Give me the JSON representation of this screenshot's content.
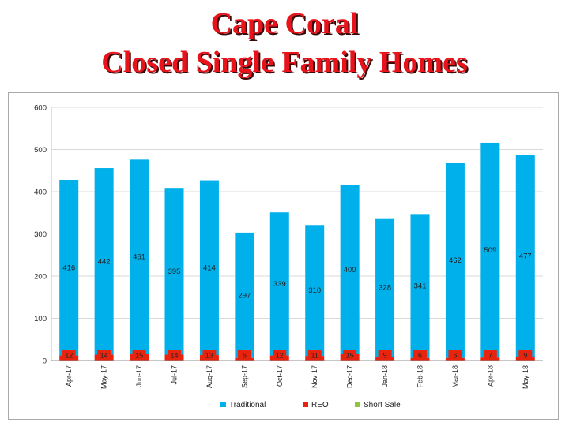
{
  "title": {
    "line1": "Cape Coral",
    "line2": "Closed Single Family Homes"
  },
  "colors": {
    "title": "#e8131b",
    "traditional": "#00b0ea",
    "reo": "#e8240f",
    "short_sale": "#8dc63f",
    "grid": "#d9d9d9"
  },
  "chart_data": {
    "type": "bar",
    "stacked": true,
    "categories": [
      "Apr-17",
      "May-17",
      "Jun-17",
      "Jul-17",
      "Aug-17",
      "Sep-17",
      "Oct-17",
      "Nov-17",
      "Dec-17",
      "Jan-18",
      "Feb-18",
      "Mar-18",
      "Apr-18",
      "May-18"
    ],
    "series": [
      {
        "name": "Traditional",
        "values": [
          416,
          442,
          461,
          395,
          414,
          297,
          339,
          310,
          400,
          328,
          341,
          462,
          509,
          477
        ]
      },
      {
        "name": "REO",
        "values": [
          12,
          14,
          15,
          14,
          13,
          6,
          12,
          11,
          15,
          9,
          6,
          6,
          7,
          9
        ]
      },
      {
        "name": "Short Sale",
        "values": [
          0,
          0,
          0,
          0,
          0,
          0,
          0,
          0,
          0,
          0,
          0,
          0,
          0,
          0
        ]
      }
    ],
    "ylim": [
      0,
      600
    ],
    "yticks": [
      "0",
      "100",
      "200",
      "300",
      "400",
      "500",
      "600"
    ],
    "grid": true,
    "legend": "bottom"
  }
}
